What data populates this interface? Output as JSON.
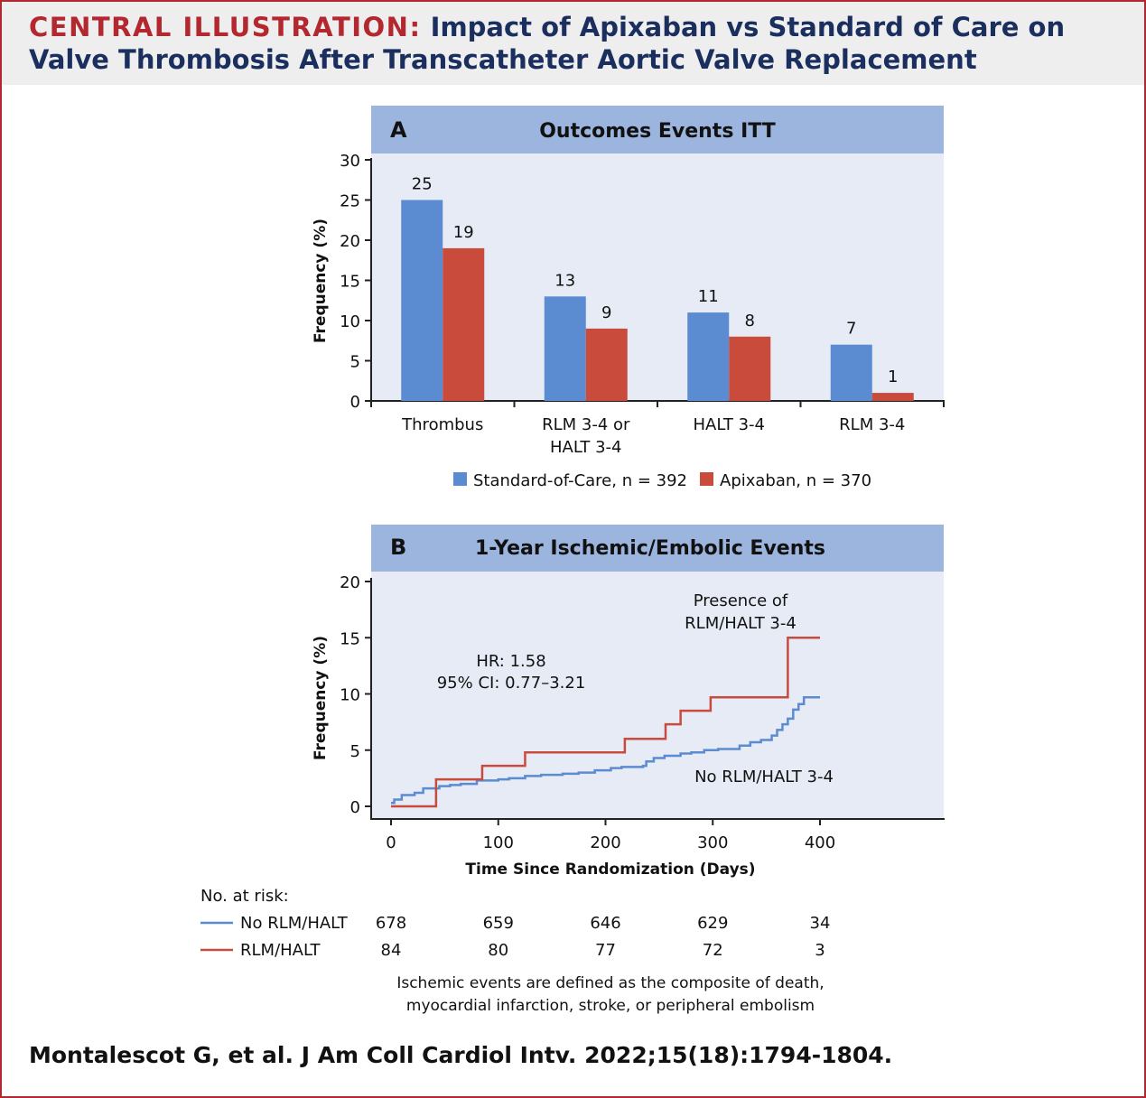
{
  "header": {
    "lead": "CENTRAL ILLUSTRATION:",
    "title": "Impact of Apixaban vs Standard of Care on Valve Thrombosis After Transcatheter Aortic Valve Replacement"
  },
  "citation": "Montalescot G, et al. J Am Coll Cardiol Intv. 2022;15(18):1794-1804.",
  "colors": {
    "standard": "#5b8bd0",
    "apixaban": "#c84b3c",
    "panel_band": "#9cb5de",
    "panel_bg": "#e6ebf6",
    "red": "#b3282e",
    "navy": "#1b2f5e"
  },
  "chart_data": [
    {
      "type": "bar",
      "panel_letter": "A",
      "title": "Outcomes Events ITT",
      "xlabel": "",
      "ylabel": "Frequency (%)",
      "ylim": [
        0,
        30
      ],
      "yticks": [
        "0",
        "5",
        "10",
        "15",
        "20",
        "25",
        "30"
      ],
      "categories": [
        [
          "Thrombus"
        ],
        [
          "RLM 3-4 or",
          "HALT 3-4"
        ],
        [
          "HALT 3-4"
        ],
        [
          "RLM 3-4"
        ]
      ],
      "series": [
        {
          "name": "Standard-of-Care, n = 392",
          "color": "#5b8bd0",
          "values": [
            25,
            13,
            11,
            7
          ]
        },
        {
          "name": "Apixaban, n = 370",
          "color": "#c84b3c",
          "values": [
            19,
            9,
            8,
            1
          ]
        }
      ],
      "legend_position": "bottom"
    },
    {
      "type": "line",
      "panel_letter": "B",
      "title": "1-Year Ischemic/Embolic Events",
      "xlabel": "Time Since Randomization (Days)",
      "ylabel": "Frequency (%)",
      "xlim": [
        0,
        500
      ],
      "ylim": [
        0,
        20
      ],
      "xticks": [
        "0",
        "100",
        "200",
        "300",
        "400"
      ],
      "yticks": [
        "0",
        "5",
        "10",
        "15",
        "20"
      ],
      "annotations": {
        "hr": "HR: 1.58",
        "ci": "95% CI: 0.77–3.21",
        "presence_1": "Presence of",
        "presence_2": "RLM/HALT 3-4",
        "absence": "No RLM/HALT 3-4"
      },
      "series": [
        {
          "name": "No RLM/HALT",
          "color": "#5b8bd0",
          "points": [
            [
              0,
              0.3
            ],
            [
              3,
              0.6
            ],
            [
              10,
              1.0
            ],
            [
              22,
              1.2
            ],
            [
              30,
              1.6
            ],
            [
              45,
              1.8
            ],
            [
              55,
              1.9
            ],
            [
              65,
              2.0
            ],
            [
              80,
              2.3
            ],
            [
              100,
              2.4
            ],
            [
              110,
              2.5
            ],
            [
              125,
              2.7
            ],
            [
              140,
              2.8
            ],
            [
              160,
              2.9
            ],
            [
              175,
              3.0
            ],
            [
              190,
              3.2
            ],
            [
              205,
              3.4
            ],
            [
              215,
              3.5
            ],
            [
              235,
              3.6
            ],
            [
              238,
              4.0
            ],
            [
              245,
              4.3
            ],
            [
              255,
              4.5
            ],
            [
              270,
              4.7
            ],
            [
              280,
              4.8
            ],
            [
              292,
              5.0
            ],
            [
              305,
              5.1
            ],
            [
              325,
              5.4
            ],
            [
              335,
              5.7
            ],
            [
              345,
              5.9
            ],
            [
              355,
              6.3
            ],
            [
              360,
              6.8
            ],
            [
              365,
              7.3
            ],
            [
              370,
              7.8
            ],
            [
              375,
              8.6
            ],
            [
              380,
              9.1
            ],
            [
              385,
              9.7
            ],
            [
              400,
              9.7
            ]
          ]
        },
        {
          "name": "RLM/HALT",
          "color": "#c84b3c",
          "points": [
            [
              0,
              0
            ],
            [
              42,
              0
            ],
            [
              42,
              2.4
            ],
            [
              85,
              2.4
            ],
            [
              85,
              3.6
            ],
            [
              125,
              3.6
            ],
            [
              125,
              4.8
            ],
            [
              218,
              4.8
            ],
            [
              218,
              6.0
            ],
            [
              256,
              6.0
            ],
            [
              256,
              7.3
            ],
            [
              270,
              7.3
            ],
            [
              270,
              8.5
            ],
            [
              298,
              8.5
            ],
            [
              298,
              9.7
            ],
            [
              370,
              9.7
            ],
            [
              370,
              15.0
            ],
            [
              400,
              15.0
            ]
          ]
        }
      ],
      "risk_table": {
        "heading": "No. at risk:",
        "rows": [
          {
            "label": "No RLM/HALT",
            "color": "#5b8bd0",
            "values": [
              "678",
              "659",
              "646",
              "629",
              "34"
            ]
          },
          {
            "label": "RLM/HALT",
            "color": "#c84b3c",
            "values": [
              "84",
              "80",
              "77",
              "72",
              "3"
            ]
          }
        ]
      },
      "footnote": [
        "Ischemic events are defined as the composite of death,",
        "myocardial infarction, stroke, or peripheral embolism"
      ]
    }
  ]
}
